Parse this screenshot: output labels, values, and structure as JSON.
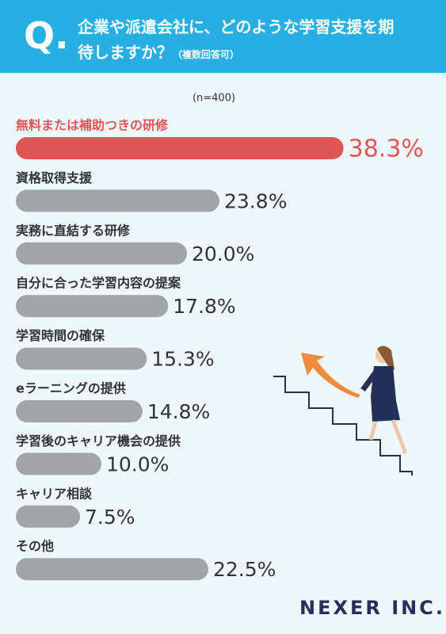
{
  "chart_data": {
    "type": "bar",
    "question_mark": "Q.",
    "title": "企業や派遣会社に、どのような学習支援を期待しますか？",
    "subtitle": "（複数回答可）",
    "note": "(n=400)",
    "brand": "NEXER INC.",
    "categories": [
      "無料または補助つきの研修",
      "資格取得支援",
      "実務に直結する研修",
      "自分に合った学習内容の提案",
      "学習時間の確保",
      "eラーニングの提供",
      "学習後のキャリア機会の提供",
      "キャリア相談",
      "その他"
    ],
    "values": [
      38.3,
      23.8,
      20.0,
      17.8,
      15.3,
      14.8,
      10.0,
      7.5,
      22.5
    ],
    "value_labels": [
      "38.3%",
      "23.8%",
      "20.0%",
      "17.8%",
      "15.3%",
      "14.8%",
      "10.0%",
      "7.5%",
      "22.5%"
    ],
    "colors": [
      "#e05556",
      "#a3a4a8",
      "#a3a4a8",
      "#a3a4a8",
      "#a3a4a8",
      "#a3a4a8",
      "#a3a4a8",
      "#a3a4a8",
      "#a3a4a8"
    ]
  }
}
